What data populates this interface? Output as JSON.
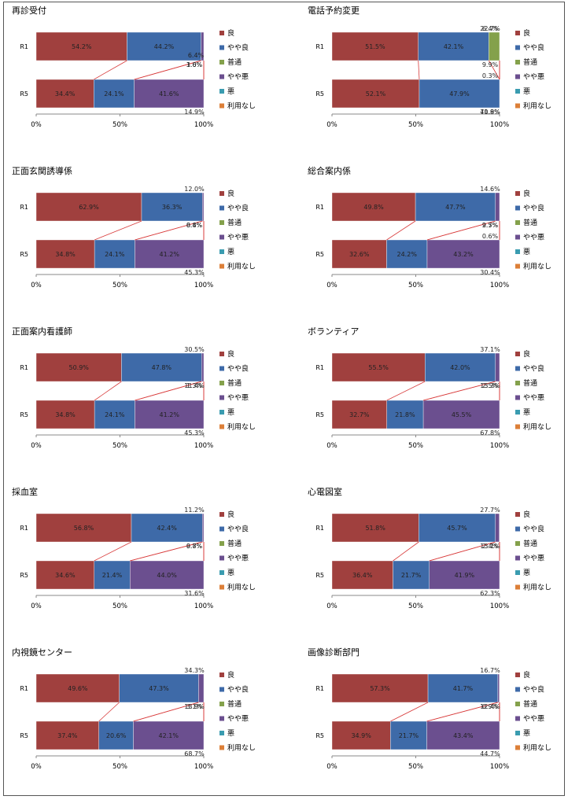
{
  "legend_labels": [
    "良",
    "やや良",
    "普通",
    "やや悪",
    "悪",
    "利用なし"
  ],
  "x_ticks": [
    "0%",
    "50%",
    "100%"
  ],
  "colors": [
    "#a0403e",
    "#3e6aa8",
    "#84a14b",
    "#6b4f8f",
    "#3a9cb0",
    "#dc7f38"
  ],
  "chart_data": [
    {
      "type": "bar",
      "title": "再診受付",
      "categories": [
        "R1",
        "R5"
      ],
      "series": [
        {
          "name": "良",
          "values": [
            54.2,
            34.4
          ]
        },
        {
          "name": "やや良",
          "values": [
            44.2,
            24.1
          ]
        },
        {
          "name": "普通",
          "values": [
            0,
            0
          ]
        },
        {
          "name": "やや悪",
          "values": [
            1.6,
            41.6
          ]
        },
        {
          "name": "悪",
          "values": [
            0,
            0
          ]
        },
        {
          "name": "利用なし",
          "values": [
            3.0,
            14.9
          ]
        }
      ],
      "extra_labels": [
        "6.4%"
      ],
      "xlim": [
        0,
        100
      ]
    },
    {
      "type": "bar",
      "title": "電話予約変更",
      "categories": [
        "R1",
        "R5"
      ],
      "series": [
        {
          "name": "良",
          "values": [
            51.5,
            52.1
          ]
        },
        {
          "name": "やや良",
          "values": [
            42.1,
            47.9
          ]
        },
        {
          "name": "普通",
          "values": [
            6.4,
            0
          ]
        },
        {
          "name": "やや悪",
          "values": [
            0,
            71.8
          ]
        },
        {
          "name": "悪",
          "values": [
            22.7,
            0.3
          ]
        },
        {
          "name": "利用なし",
          "values": [
            9.9,
            40.9
          ]
        }
      ],
      "xlim": [
        0,
        100
      ]
    },
    {
      "type": "bar",
      "title": "正面玄関誘導係",
      "categories": [
        "R1",
        "R5"
      ],
      "series": [
        {
          "name": "良",
          "values": [
            62.9,
            34.8
          ]
        },
        {
          "name": "やや良",
          "values": [
            36.3,
            24.1
          ]
        },
        {
          "name": "普通",
          "values": [
            0,
            0
          ]
        },
        {
          "name": "やや悪",
          "values": [
            0.8,
            41.2
          ]
        },
        {
          "name": "悪",
          "values": [
            12.0,
            0
          ]
        },
        {
          "name": "利用なし",
          "values": [
            8.4,
            45.3
          ]
        }
      ],
      "xlim": [
        0,
        100
      ]
    },
    {
      "type": "bar",
      "title": "総合案内係",
      "categories": [
        "R1",
        "R5"
      ],
      "series": [
        {
          "name": "良",
          "values": [
            49.8,
            32.6
          ]
        },
        {
          "name": "やや良",
          "values": [
            47.7,
            24.2
          ]
        },
        {
          "name": "普通",
          "values": [
            0,
            0
          ]
        },
        {
          "name": "やや悪",
          "values": [
            2.5,
            43.2
          ]
        },
        {
          "name": "悪",
          "values": [
            14.6,
            0.6
          ]
        },
        {
          "name": "利用なし",
          "values": [
            9.7,
            30.4
          ]
        }
      ],
      "xlim": [
        0,
        100
      ]
    },
    {
      "type": "bar",
      "title": "正面案内看護師",
      "categories": [
        "R1",
        "R5"
      ],
      "series": [
        {
          "name": "良",
          "values": [
            50.9,
            34.8
          ]
        },
        {
          "name": "やや良",
          "values": [
            47.8,
            24.1
          ]
        },
        {
          "name": "普通",
          "values": [
            0,
            0
          ]
        },
        {
          "name": "やや悪",
          "values": [
            1.3,
            41.2
          ]
        },
        {
          "name": "悪",
          "values": [
            30.5,
            0
          ]
        },
        {
          "name": "利用なし",
          "values": [
            11.4,
            45.3
          ]
        }
      ],
      "xlim": [
        0,
        100
      ]
    },
    {
      "type": "bar",
      "title": "ボランティア",
      "categories": [
        "R1",
        "R5"
      ],
      "series": [
        {
          "name": "良",
          "values": [
            55.5,
            32.7
          ]
        },
        {
          "name": "やや良",
          "values": [
            42.0,
            21.8
          ]
        },
        {
          "name": "普通",
          "values": [
            0,
            0
          ]
        },
        {
          "name": "やや悪",
          "values": [
            2.5,
            45.5
          ]
        },
        {
          "name": "悪",
          "values": [
            37.1,
            0
          ]
        },
        {
          "name": "利用なし",
          "values": [
            13.3,
            67.8
          ]
        }
      ],
      "xlim": [
        0,
        100
      ]
    },
    {
      "type": "bar",
      "title": "採血室",
      "categories": [
        "R1",
        "R5"
      ],
      "series": [
        {
          "name": "良",
          "values": [
            56.8,
            34.6
          ]
        },
        {
          "name": "やや良",
          "values": [
            42.4,
            21.4
          ]
        },
        {
          "name": "普通",
          "values": [
            0,
            0
          ]
        },
        {
          "name": "やや悪",
          "values": [
            0.8,
            44.0
          ]
        },
        {
          "name": "悪",
          "values": [
            11.2,
            0
          ]
        },
        {
          "name": "利用なし",
          "values": [
            9.7,
            31.6
          ]
        }
      ],
      "xlim": [
        0,
        100
      ]
    },
    {
      "type": "bar",
      "title": "心電図室",
      "categories": [
        "R1",
        "R5"
      ],
      "series": [
        {
          "name": "良",
          "values": [
            51.8,
            36.4
          ]
        },
        {
          "name": "やや良",
          "values": [
            45.7,
            21.7
          ]
        },
        {
          "name": "普通",
          "values": [
            0,
            0
          ]
        },
        {
          "name": "やや悪",
          "values": [
            2.4,
            41.9
          ]
        },
        {
          "name": "悪",
          "values": [
            27.7,
            0
          ]
        },
        {
          "name": "利用なし",
          "values": [
            13.1,
            62.3
          ]
        }
      ],
      "xlim": [
        0,
        100
      ]
    },
    {
      "type": "bar",
      "title": "内視鏡センター",
      "categories": [
        "R1",
        "R5"
      ],
      "series": [
        {
          "name": "良",
          "values": [
            49.6,
            37.4
          ]
        },
        {
          "name": "やや良",
          "values": [
            47.3,
            20.6
          ]
        },
        {
          "name": "普通",
          "values": [
            0,
            0
          ]
        },
        {
          "name": "やや悪",
          "values": [
            3.1,
            42.1
          ]
        },
        {
          "name": "悪",
          "values": [
            34.3,
            0
          ]
        },
        {
          "name": "利用なし",
          "values": [
            13.9,
            68.7
          ]
        }
      ],
      "xlim": [
        0,
        100
      ]
    },
    {
      "type": "bar",
      "title": "画像診断部門",
      "categories": [
        "R1",
        "R5"
      ],
      "series": [
        {
          "name": "良",
          "values": [
            57.3,
            34.9
          ]
        },
        {
          "name": "やや良",
          "values": [
            41.7,
            21.7
          ]
        },
        {
          "name": "普通",
          "values": [
            0,
            0
          ]
        },
        {
          "name": "やや悪",
          "values": [
            0.9,
            43.4
          ]
        },
        {
          "name": "悪",
          "values": [
            16.7,
            0
          ]
        },
        {
          "name": "利用なし",
          "values": [
            12.4,
            44.7
          ]
        }
      ],
      "xlim": [
        0,
        100
      ]
    }
  ]
}
